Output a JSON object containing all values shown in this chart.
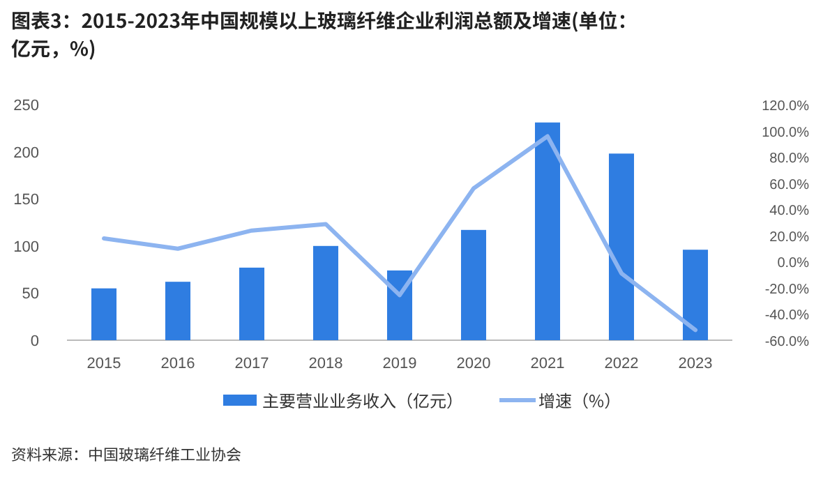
{
  "chart_data": {
    "type": "bar",
    "title": "图表3：2015-2023年中国规模以上玻璃纤维企业利润总额及增速(单位：亿元，%)",
    "categories": [
      "2015",
      "2016",
      "2017",
      "2018",
      "2019",
      "2020",
      "2021",
      "2022",
      "2023"
    ],
    "series": [
      {
        "name": "主要营业业务收入（亿元）",
        "color": "#2f7de1",
        "values": [
          55,
          62,
          77,
          100,
          74,
          117,
          231,
          198,
          96
        ]
      },
      {
        "name": "增速（%）",
        "type": "line",
        "axis": "y2",
        "color": "#8db4f0",
        "values": [
          17.7,
          9.9,
          23.8,
          28.7,
          -25.6,
          56,
          95.8,
          -8.9,
          -52.2
        ]
      }
    ],
    "ylim": [
      0,
      250
    ],
    "yticks": [
      0,
      50,
      100,
      150,
      200,
      250
    ],
    "y2lim": [
      -60,
      120
    ],
    "y2ticks": [
      {
        "value": -60,
        "label": "-60.0%"
      },
      {
        "value": -40,
        "label": "-40.0%"
      },
      {
        "value": -20,
        "label": "-20.0%"
      },
      {
        "value": 0,
        "label": "0.0%"
      },
      {
        "value": 20,
        "label": "20.0%"
      },
      {
        "value": 40,
        "label": "40.0%"
      },
      {
        "value": 60,
        "label": "60.0%"
      },
      {
        "value": 80,
        "label": "80.0%"
      },
      {
        "value": 100,
        "label": "100.0%"
      },
      {
        "value": 120,
        "label": "120.0%"
      }
    ],
    "legend": "bottom",
    "grid": false,
    "annotations": [
      "资料来源：中国玻璃纤维工业协会"
    ]
  }
}
